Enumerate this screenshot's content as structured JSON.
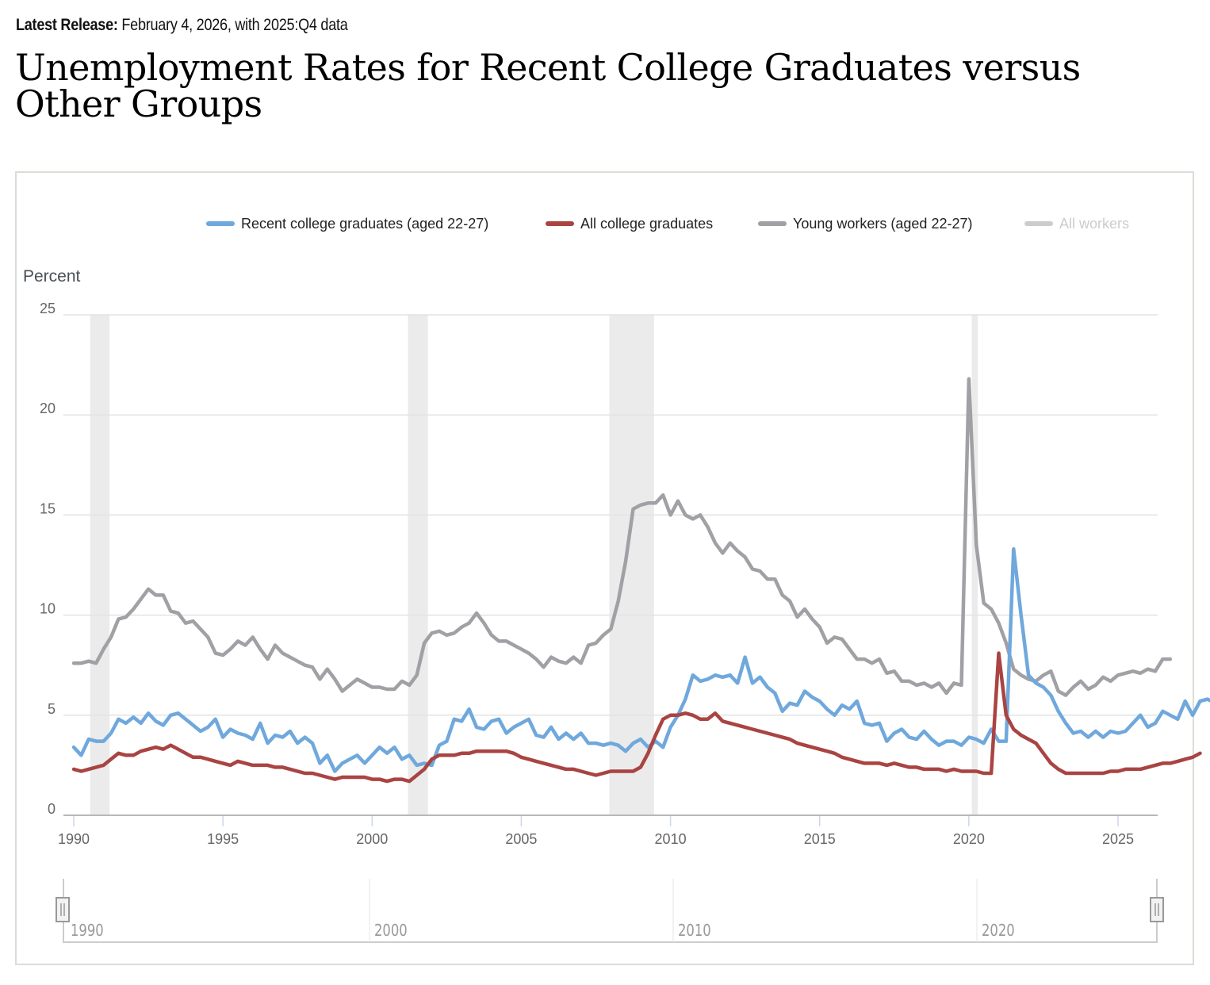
{
  "header": {
    "release_label": "Latest Release:",
    "release_value": "February 4, 2026, with 2025:Q4 data",
    "title": "Unemployment Rates for Recent College Graduates versus Other Groups"
  },
  "legend": [
    {
      "name": "Recent college graduates (aged 22-27)",
      "color": "#6fa8dc",
      "visible": true
    },
    {
      "name": "All college graduates",
      "color": "#a94442",
      "visible": true
    },
    {
      "name": "Young workers (aged 22-27)",
      "color": "#a0a0a5",
      "visible": true
    },
    {
      "name": "All workers",
      "color": "#cccccc",
      "visible": false
    }
  ],
  "navigator": {
    "labels": [
      "1990",
      "2000",
      "2010",
      "2020"
    ]
  },
  "chart_data": {
    "type": "line",
    "title": "Unemployment Rates for Recent College Graduates versus Other Groups",
    "ylabel": "Percent",
    "xlabel": "",
    "ylim": [
      0,
      25
    ],
    "yticks": [
      0,
      5,
      10,
      15,
      20,
      25
    ],
    "xlim": [
      1990,
      2025.9
    ],
    "xticks": [
      1990,
      1995,
      2000,
      2005,
      2010,
      2015,
      2020,
      2025
    ],
    "grid": true,
    "legend_position": "top",
    "recessions": [
      [
        1990.55,
        1991.2
      ],
      [
        2001.2,
        2001.87
      ],
      [
        2007.95,
        2009.45
      ],
      [
        2020.1,
        2020.3
      ]
    ],
    "x_start": 1990.0,
    "x_step": 0.25,
    "series": [
      {
        "name": "Recent college graduates (aged 22-27)",
        "color": "#6fa8dc",
        "values": [
          3.4,
          3.0,
          3.8,
          3.7,
          3.7,
          4.1,
          4.8,
          4.6,
          4.9,
          4.6,
          5.1,
          4.7,
          4.5,
          5.0,
          5.1,
          4.8,
          4.5,
          4.2,
          4.4,
          4.8,
          3.9,
          4.3,
          4.1,
          4.0,
          3.8,
          4.6,
          3.6,
          4.0,
          3.9,
          4.2,
          3.6,
          3.9,
          3.6,
          2.6,
          3.0,
          2.2,
          2.6,
          2.8,
          3.0,
          2.6,
          3.0,
          3.4,
          3.1,
          3.4,
          2.8,
          3.0,
          2.5,
          2.6,
          2.5,
          3.5,
          3.7,
          4.8,
          4.7,
          5.3,
          4.4,
          4.3,
          4.7,
          4.8,
          4.1,
          4.4,
          4.6,
          4.8,
          4.0,
          3.9,
          4.4,
          3.8,
          4.1,
          3.8,
          4.1,
          3.6,
          3.6,
          3.5,
          3.6,
          3.5,
          3.2,
          3.6,
          3.8,
          3.4,
          3.7,
          3.4,
          4.4,
          5.0,
          5.8,
          7.0,
          6.7,
          6.8,
          7.0,
          6.9,
          7.0,
          6.6,
          7.9,
          6.6,
          6.9,
          6.4,
          6.1,
          5.2,
          5.6,
          5.5,
          6.2,
          5.9,
          5.7,
          5.3,
          5.0,
          5.5,
          5.3,
          5.7,
          4.6,
          4.5,
          4.6,
          3.7,
          4.1,
          4.3,
          3.9,
          3.8,
          4.2,
          3.8,
          3.5,
          3.7,
          3.7,
          3.5,
          3.9,
          3.8,
          3.6,
          4.3,
          3.7,
          3.7,
          13.3,
          10.0,
          7.0,
          6.6,
          6.4,
          6.0,
          5.2,
          4.6,
          4.1,
          4.2,
          3.9,
          4.2,
          3.9,
          4.2,
          4.1,
          4.2,
          4.6,
          5.0,
          4.4,
          4.6,
          5.2,
          5.0,
          4.8,
          5.7,
          5.0,
          5.7,
          5.8,
          5.6
        ]
      },
      {
        "name": "All college graduates",
        "color": "#a94442",
        "values": [
          2.3,
          2.2,
          2.3,
          2.4,
          2.5,
          2.8,
          3.1,
          3.0,
          3.0,
          3.2,
          3.3,
          3.4,
          3.3,
          3.5,
          3.3,
          3.1,
          2.9,
          2.9,
          2.8,
          2.7,
          2.6,
          2.5,
          2.7,
          2.6,
          2.5,
          2.5,
          2.5,
          2.4,
          2.4,
          2.3,
          2.2,
          2.1,
          2.1,
          2.0,
          1.9,
          1.8,
          1.9,
          1.9,
          1.9,
          1.9,
          1.8,
          1.8,
          1.7,
          1.8,
          1.8,
          1.7,
          2.0,
          2.3,
          2.8,
          3.0,
          3.0,
          3.0,
          3.1,
          3.1,
          3.2,
          3.2,
          3.2,
          3.2,
          3.2,
          3.1,
          2.9,
          2.8,
          2.7,
          2.6,
          2.5,
          2.4,
          2.3,
          2.3,
          2.2,
          2.1,
          2.0,
          2.1,
          2.2,
          2.2,
          2.2,
          2.2,
          2.4,
          3.1,
          4.0,
          4.8,
          5.0,
          5.0,
          5.1,
          5.0,
          4.8,
          4.8,
          5.1,
          4.7,
          4.6,
          4.5,
          4.4,
          4.3,
          4.2,
          4.1,
          4.0,
          3.9,
          3.8,
          3.6,
          3.5,
          3.4,
          3.3,
          3.2,
          3.1,
          2.9,
          2.8,
          2.7,
          2.6,
          2.6,
          2.6,
          2.5,
          2.6,
          2.5,
          2.4,
          2.4,
          2.3,
          2.3,
          2.3,
          2.2,
          2.3,
          2.2,
          2.2,
          2.2,
          2.1,
          2.1,
          8.1,
          5.0,
          4.3,
          4.0,
          3.8,
          3.6,
          3.1,
          2.6,
          2.3,
          2.1,
          2.1,
          2.1,
          2.1,
          2.1,
          2.1,
          2.2,
          2.2,
          2.3,
          2.3,
          2.3,
          2.4,
          2.5,
          2.6,
          2.6,
          2.7,
          2.8,
          2.9,
          3.1
        ]
      },
      {
        "name": "Young workers (aged 22-27)",
        "color": "#a0a0a5",
        "values": [
          7.6,
          7.6,
          7.7,
          7.6,
          8.3,
          8.9,
          9.8,
          9.9,
          10.3,
          10.8,
          11.3,
          11.0,
          11.0,
          10.2,
          10.1,
          9.6,
          9.7,
          9.3,
          8.9,
          8.1,
          8.0,
          8.3,
          8.7,
          8.5,
          8.9,
          8.3,
          7.8,
          8.5,
          8.1,
          7.9,
          7.7,
          7.5,
          7.4,
          6.8,
          7.3,
          6.8,
          6.2,
          6.5,
          6.8,
          6.6,
          6.4,
          6.4,
          6.3,
          6.3,
          6.7,
          6.5,
          7.0,
          8.6,
          9.1,
          9.2,
          9.0,
          9.1,
          9.4,
          9.6,
          10.1,
          9.6,
          9.0,
          8.7,
          8.7,
          8.5,
          8.3,
          8.1,
          7.8,
          7.4,
          7.9,
          7.7,
          7.6,
          7.9,
          7.6,
          8.5,
          8.6,
          9.0,
          9.3,
          10.7,
          12.7,
          15.3,
          15.5,
          15.6,
          15.6,
          16.0,
          15.0,
          15.7,
          15.0,
          14.8,
          15.0,
          14.4,
          13.6,
          13.1,
          13.6,
          13.2,
          12.9,
          12.3,
          12.2,
          11.8,
          11.8,
          11.0,
          10.7,
          9.9,
          10.3,
          9.8,
          9.4,
          8.6,
          8.9,
          8.8,
          8.3,
          7.8,
          7.8,
          7.6,
          7.8,
          7.1,
          7.2,
          6.7,
          6.7,
          6.5,
          6.6,
          6.4,
          6.6,
          6.1,
          6.6,
          6.5,
          21.8,
          13.5,
          10.6,
          10.3,
          9.6,
          8.6,
          7.3,
          7.0,
          6.8,
          6.7,
          7.0,
          7.2,
          6.2,
          6.0,
          6.4,
          6.7,
          6.3,
          6.5,
          6.9,
          6.7,
          7.0,
          7.1,
          7.2,
          7.1,
          7.3,
          7.2,
          7.8,
          7.8
        ]
      }
    ]
  }
}
